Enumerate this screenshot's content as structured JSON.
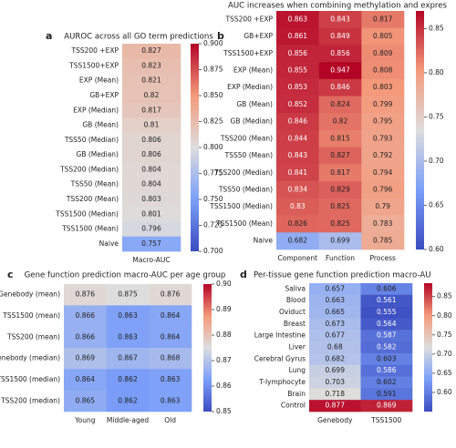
{
  "chart_data": [
    {
      "type": "heatmap",
      "label": "a",
      "title": "AUROC across all GO term predictions",
      "rows": [
        "TSS200 +EXP",
        "TSS1500+EXP",
        "EXP (Mean)",
        "GB+EXP",
        "EXP (Median)",
        "GB (Mean)",
        "TSS50 (Median)",
        "GB (Median)",
        "TSS200 (Median)",
        "TSS50 (Mean)",
        "TSS200 (Mean)",
        "TSS1500 (Median)",
        "TSS1500 (Mean)",
        "Naive"
      ],
      "columns": [
        "Macro-AUC"
      ],
      "values": [
        [
          0.827
        ],
        [
          0.823
        ],
        [
          0.821
        ],
        [
          0.82
        ],
        [
          0.817
        ],
        [
          0.81
        ],
        [
          0.806
        ],
        [
          0.806
        ],
        [
          0.804
        ],
        [
          0.804
        ],
        [
          0.803
        ],
        [
          0.801
        ],
        [
          0.796
        ],
        [
          0.757
        ]
      ],
      "colormap": "coolwarm",
      "zlim": [
        0.7,
        0.9
      ],
      "zticks": [
        {
          "value": 0.7,
          "label": "0.700"
        },
        {
          "value": 0.725,
          "label": "0.725"
        },
        {
          "value": 0.75,
          "label": "0.750"
        },
        {
          "value": 0.775,
          "label": "0.775"
        },
        {
          "value": 0.8,
          "label": "0.800"
        },
        {
          "value": 0.825,
          "label": "0.825"
        },
        {
          "value": 0.85,
          "label": "0.850"
        },
        {
          "value": 0.875,
          "label": "0.875"
        },
        {
          "value": 0.9,
          "label": "0.900"
        }
      ]
    },
    {
      "type": "heatmap",
      "label": "b",
      "title": "AUC increases when combining methylation and expres",
      "rows": [
        "TSS200 +EXP",
        "GB+EXP",
        "TSS1500+EXP",
        "EXP (Mean)",
        "EXP (Median)",
        "GB (Mean)",
        "GB (Median)",
        "TSS200 (Mean)",
        "TSS50 (Mean)",
        "TSS200 (Median)",
        "TSS50 (Median)",
        "TSS1500 (Median)",
        "TSS1500 (Mean)",
        "Naive"
      ],
      "columns": [
        "Component",
        "Function",
        "Process"
      ],
      "values": [
        [
          0.863,
          0.843,
          0.817
        ],
        [
          0.861,
          0.849,
          0.805
        ],
        [
          0.856,
          0.856,
          0.809
        ],
        [
          0.855,
          0.947,
          0.808
        ],
        [
          0.853,
          0.846,
          0.803
        ],
        [
          0.852,
          0.824,
          0.799
        ],
        [
          0.846,
          0.82,
          0.795
        ],
        [
          0.844,
          0.815,
          0.793
        ],
        [
          0.843,
          0.827,
          0.792
        ],
        [
          0.841,
          0.817,
          0.794
        ],
        [
          0.834,
          0.829,
          0.796
        ],
        [
          0.83,
          0.825,
          0.79
        ],
        [
          0.826,
          0.825,
          0.783
        ],
        [
          0.682,
          0.699,
          0.785
        ]
      ],
      "colormap": "coolwarm",
      "zlim": [
        0.6,
        0.87
      ],
      "zticks": [
        {
          "value": 0.6,
          "label": "0.60"
        },
        0.65,
        {
          "value": 0.7,
          "label": "0.70"
        },
        0.75,
        {
          "value": 0.8,
          "label": "0.80"
        },
        0.85
      ]
    },
    {
      "type": "heatmap",
      "label": "c",
      "title": "Gene function prediction macro-AUC per age group",
      "rows": [
        "Genebody (mean)",
        "TSS1500 (mean)",
        "TSS200 (mean)",
        "Genebody (median)",
        "TSS1500 (median)",
        "TSS200 (median)"
      ],
      "columns": [
        "Young",
        "Middle-aged",
        "Old"
      ],
      "values": [
        [
          0.876,
          0.875,
          0.876
        ],
        [
          0.866,
          0.863,
          0.864
        ],
        [
          0.866,
          0.863,
          0.864
        ],
        [
          0.869,
          0.867,
          0.868
        ],
        [
          0.864,
          0.862,
          0.863
        ],
        [
          0.865,
          0.862,
          0.863
        ]
      ],
      "colormap": "coolwarm",
      "zlim": [
        0.85,
        0.9
      ],
      "zticks": [
        0.85,
        0.86,
        0.87,
        0.88,
        0.89,
        {
          "value": 0.9,
          "label": "0.90"
        }
      ]
    },
    {
      "type": "heatmap",
      "label": "d",
      "title": "Per-tissue gene function prediction macro-AU",
      "rows": [
        "Saliva",
        "Blood",
        "Oviduct",
        "Breast",
        "Large Intestine",
        "Liver",
        "Cerebral Gyrus",
        "Lung",
        "T-lymphocyte",
        "Brain",
        "Control"
      ],
      "columns": [
        "Genebody",
        "TSS1500"
      ],
      "values": [
        [
          0.657,
          0.606
        ],
        [
          0.663,
          0.561
        ],
        [
          0.665,
          0.555
        ],
        [
          0.673,
          0.564
        ],
        [
          0.677,
          0.587
        ],
        [
          0.68,
          0.582
        ],
        [
          0.682,
          0.603
        ],
        [
          0.699,
          0.586
        ],
        [
          0.703,
          0.602
        ],
        [
          0.718,
          0.591
        ],
        [
          0.877,
          0.869
        ]
      ],
      "colormap": "coolwarm",
      "zlim": [
        0.55,
        0.885
      ],
      "zticks": [
        {
          "value": 0.6,
          "label": "0.60"
        },
        0.65,
        {
          "value": 0.7,
          "label": "0.70"
        },
        0.75,
        {
          "value": 0.8,
          "label": "0.80"
        },
        0.85
      ]
    }
  ]
}
